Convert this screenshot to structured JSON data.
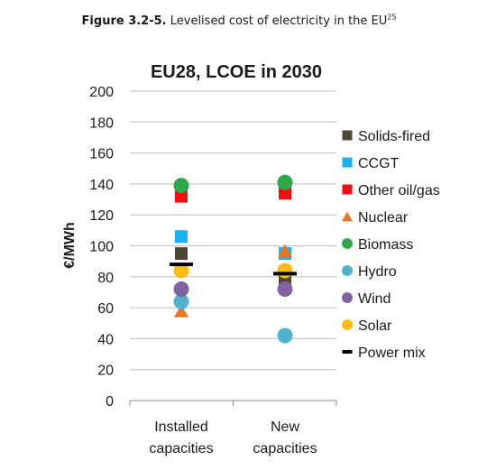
{
  "caption": {
    "label": "Figure 3.2-5.",
    "text": " Levelised cost of electricity in the EU",
    "footnote": "25"
  },
  "chart_data": {
    "type": "scatter",
    "title": "EU28, LCOE in 2030",
    "xlabel": "",
    "ylabel": "€/MWh",
    "ylim": [
      0,
      200
    ],
    "yticks": [
      0,
      20,
      40,
      60,
      80,
      100,
      120,
      140,
      160,
      180,
      200
    ],
    "grid": true,
    "legend_position": "right",
    "categories": [
      [
        "Installed",
        "capacities"
      ],
      [
        "New",
        "capacities"
      ]
    ],
    "series": [
      {
        "name": "Solids-fired",
        "marker": "square",
        "color": "#4d4633",
        "values": [
          95,
          79
        ]
      },
      {
        "name": "CCGT",
        "marker": "square",
        "color": "#1cb2f0",
        "values": [
          106,
          95
        ]
      },
      {
        "name": "Other oil/gas",
        "marker": "square",
        "color": "#ee1111",
        "values": [
          132,
          134
        ]
      },
      {
        "name": "Nuclear",
        "marker": "triangle",
        "color": "#e87722",
        "values": [
          58,
          97
        ]
      },
      {
        "name": "Biomass",
        "marker": "circle",
        "color": "#2ea84a",
        "values": [
          139,
          141
        ]
      },
      {
        "name": "Hydro",
        "marker": "circle",
        "color": "#4fb3cf",
        "values": [
          64,
          42
        ]
      },
      {
        "name": "Wind",
        "marker": "circle",
        "color": "#8064a2",
        "values": [
          72,
          72
        ]
      },
      {
        "name": "Solar",
        "marker": "circle",
        "color": "#fdbb13",
        "values": [
          84,
          84
        ]
      },
      {
        "name": "Power mix",
        "marker": "dash",
        "color": "#000000",
        "values": [
          88,
          82
        ]
      }
    ]
  }
}
